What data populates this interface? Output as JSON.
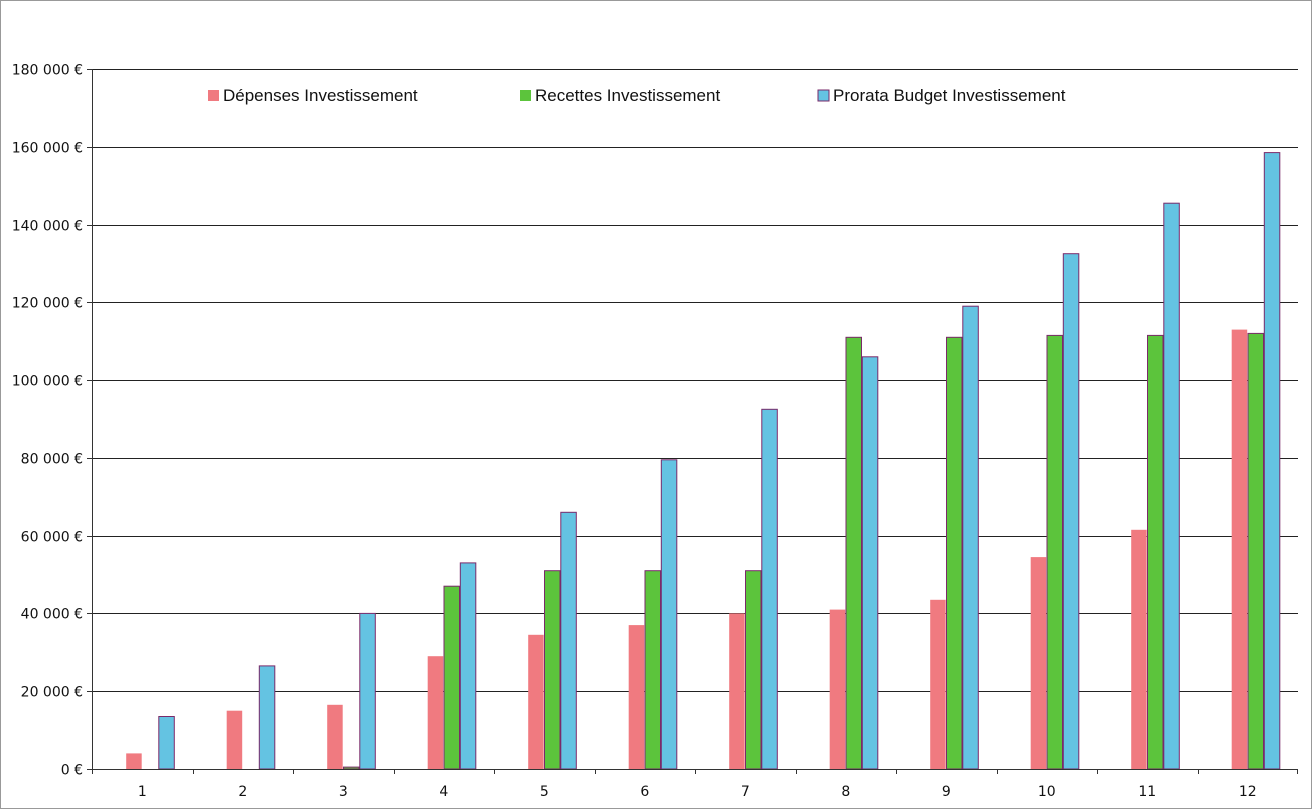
{
  "chart_data": {
    "type": "bar",
    "title": "",
    "xlabel": "",
    "ylabel": "",
    "categories": [
      "1",
      "2",
      "3",
      "4",
      "5",
      "6",
      "7",
      "8",
      "9",
      "10",
      "11",
      "12"
    ],
    "ylim": [
      0,
      180000
    ],
    "y_ticks": [
      0,
      20000,
      40000,
      60000,
      80000,
      100000,
      120000,
      140000,
      160000,
      180000
    ],
    "y_tick_labels": [
      "0 €",
      "20 000 €",
      "40 000 €",
      "60 000 €",
      "80 000 €",
      "100 000 €",
      "120 000 €",
      "140 000 €",
      "160 000 €",
      "180 000 €"
    ],
    "grid": true,
    "legend_position": "top",
    "series": [
      {
        "name": "Dépenses Investissement",
        "color": "#f07a80",
        "values": [
          4000,
          15000,
          16500,
          29000,
          34500,
          37000,
          40000,
          41000,
          43500,
          54500,
          61500,
          113000
        ]
      },
      {
        "name": "Recettes Investissement",
        "color": "#5cc43c",
        "values": [
          0,
          0,
          500,
          47000,
          51000,
          51000,
          51000,
          111000,
          111000,
          111500,
          111500,
          112000
        ]
      },
      {
        "name": "Prorata Budget Investissement",
        "color": "#64c3e2",
        "values": [
          13500,
          26500,
          40000,
          53000,
          66000,
          79500,
          92500,
          106000,
          119000,
          132500,
          145500,
          158500
        ]
      }
    ]
  }
}
